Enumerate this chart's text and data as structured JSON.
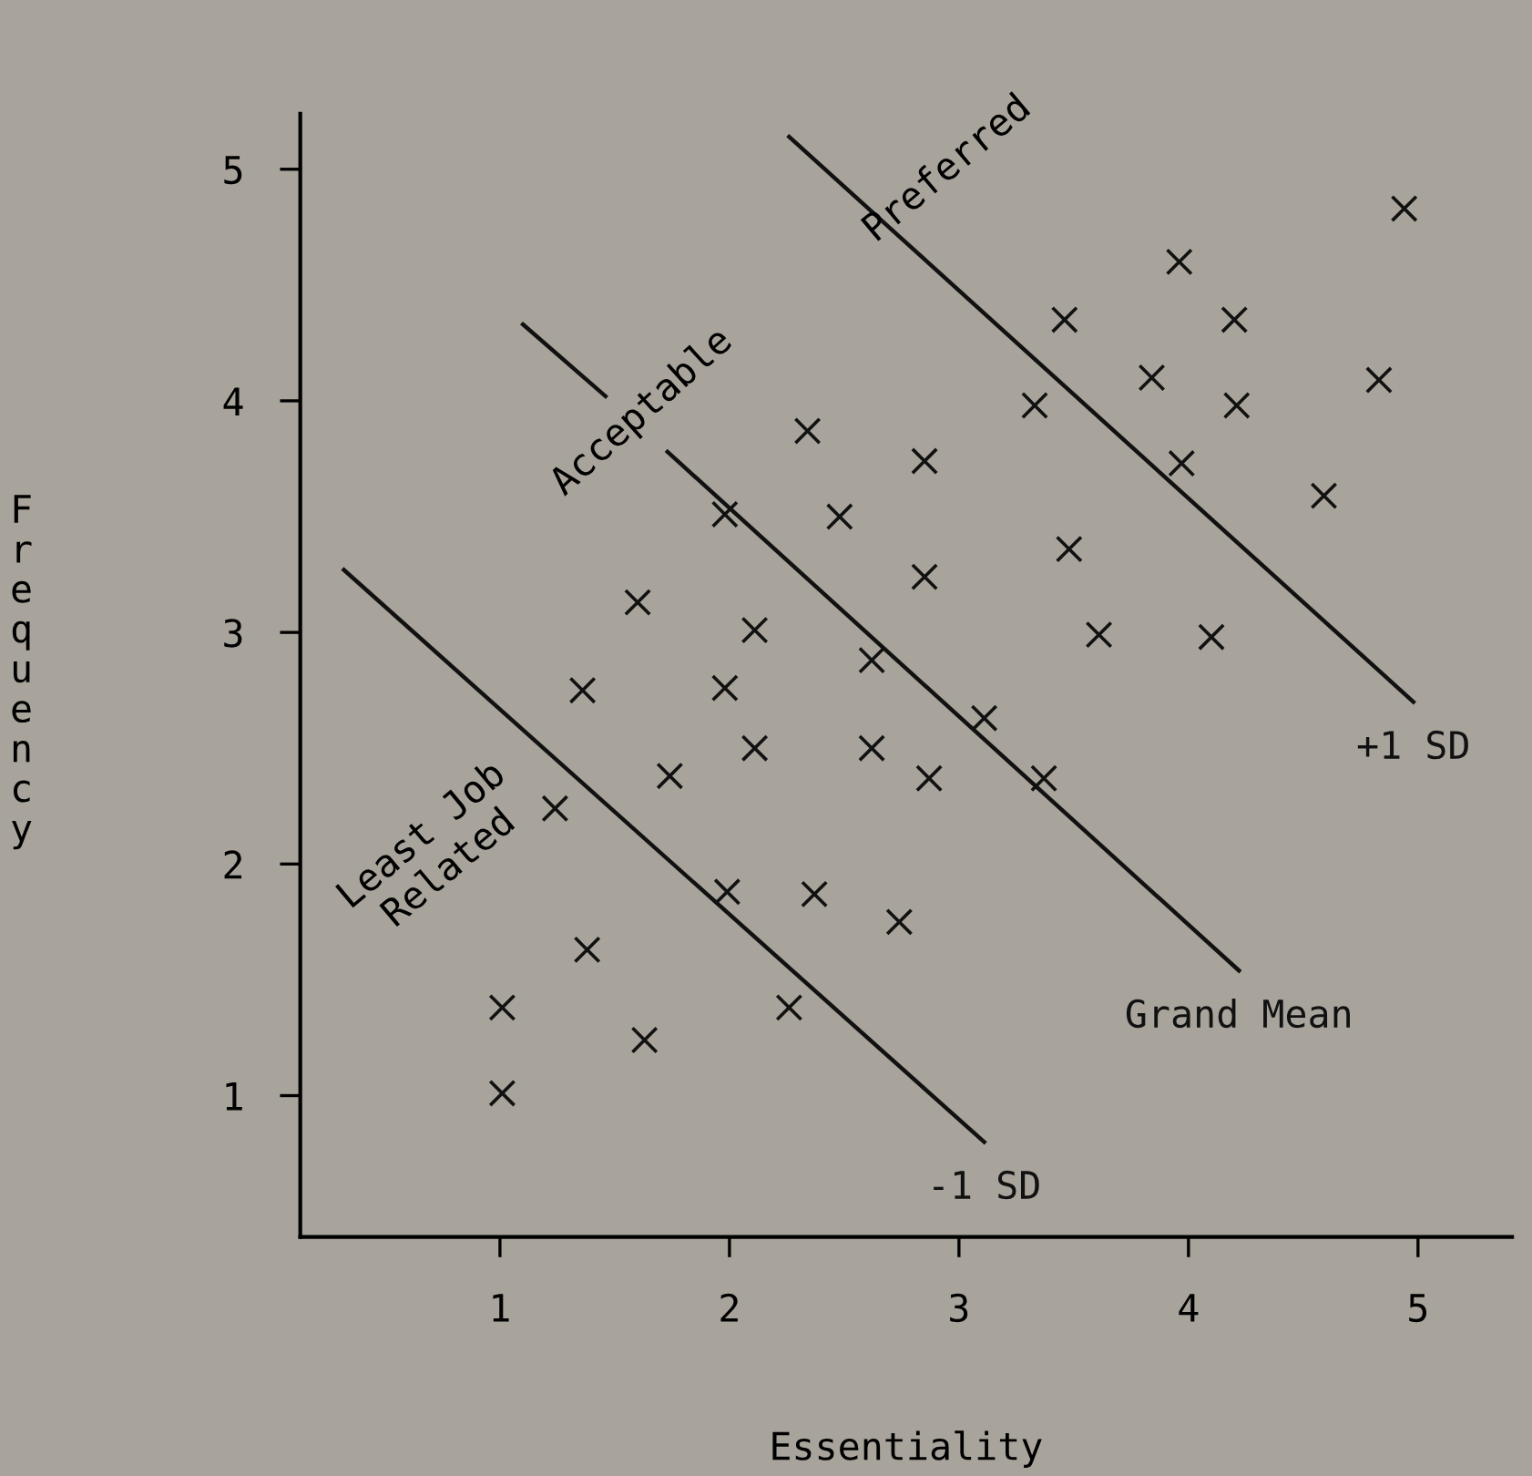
{
  "chart_data": {
    "type": "scatter",
    "xlabel": "Essentiality",
    "ylabel": "Frequency",
    "xlim": [
      0.13,
      5.41
    ],
    "ylim": [
      0.39,
      5.24
    ],
    "xticks": [
      1,
      2,
      3,
      4,
      5
    ],
    "yticks": [
      1,
      2,
      3,
      4,
      5
    ],
    "grid": false,
    "series": [
      {
        "marker": "cross",
        "color": "#111111",
        "x": [
          2.34,
          1.98,
          2.48,
          1.6,
          2.11,
          2.62,
          1.36,
          1.98,
          4.94,
          3.96,
          3.46,
          4.2,
          3.84,
          4.83,
          3.33,
          4.21,
          2.85,
          3.97,
          4.59,
          3.48,
          2.85,
          3.61,
          4.1,
          2.11,
          2.62,
          1.74,
          1.24,
          1.99,
          2.37,
          2.74,
          1.38,
          1.01,
          2.26,
          1.63,
          1.01,
          3.11,
          2.87,
          3.37
        ],
        "values": [
          3.87,
          3.51,
          3.5,
          3.13,
          3.01,
          2.88,
          2.75,
          2.76,
          4.83,
          4.6,
          4.35,
          4.35,
          4.1,
          4.09,
          3.98,
          3.98,
          3.74,
          3.73,
          3.59,
          3.36,
          3.24,
          2.99,
          2.98,
          2.5,
          2.5,
          2.38,
          2.24,
          1.88,
          1.87,
          1.75,
          1.63,
          1.38,
          1.38,
          1.24,
          1.01,
          2.63,
          2.37,
          2.37
        ]
      },
      {
        "type": "line",
        "marker": "none",
        "name": "-1 SD",
        "color": "#111111",
        "x": [
          0.32,
          3.11
        ],
        "values": [
          3.27,
          0.8
        ]
      },
      {
        "type": "line",
        "marker": "none",
        "name": "Grand Mean",
        "color": "#111111",
        "x": [
          1.1,
          1.46,
          1.6,
          1.73,
          4.22
        ],
        "values": [
          4.33,
          4.02,
          null,
          3.78,
          1.54
        ]
      },
      {
        "type": "line",
        "marker": "none",
        "name": "+1 SD",
        "color": "#111111",
        "x": [
          2.26,
          4.98
        ],
        "values": [
          5.14,
          2.7
        ]
      }
    ],
    "annotations": [
      "Preferred",
      "Acceptable",
      "Least Job\nRelated"
    ]
  }
}
